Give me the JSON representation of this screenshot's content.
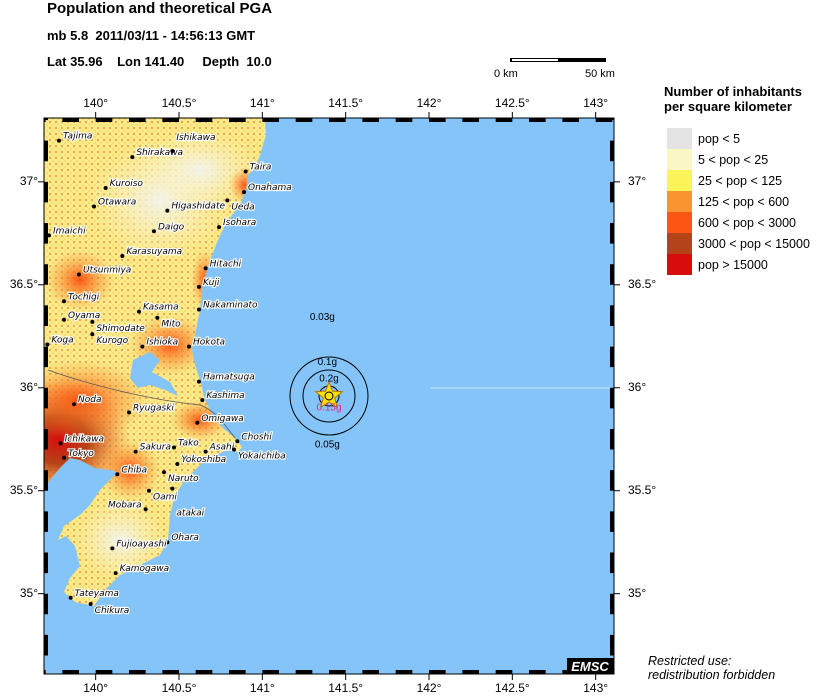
{
  "header": {
    "title": "Population and theoretical PGA",
    "event_line": "mb 5.8  2011/03/11 - 14:56:13 GMT",
    "location_line": "Lat 35.96    Lon 141.40     Depth  10.0"
  },
  "scale_bar": {
    "start_label": "0 km",
    "end_label": "50 km"
  },
  "map": {
    "extent": {
      "lon": [
        139.69,
        143.11
      ],
      "lat": [
        34.61,
        37.31
      ]
    },
    "ocean_color": "#84c4f8",
    "lon_ticks": [
      "140°",
      "140.5°",
      "141°",
      "141.5°",
      "142°",
      "142.5°",
      "143°"
    ],
    "lon_tick_values": [
      140,
      140.5,
      141,
      141.5,
      142,
      142.5,
      143
    ],
    "lat_ticks": [
      "37°",
      "36.5°",
      "36°",
      "35.5°",
      "35°"
    ],
    "lat_tick_values": [
      37,
      36.5,
      36,
      35.5,
      35
    ],
    "epicenter": {
      "lon": 141.4,
      "lat": 35.96,
      "icon": "star-icon"
    },
    "pga_labels": [
      {
        "text": "0.03g",
        "lon": 141.36,
        "lat": 36.33
      },
      {
        "text": "0.1g",
        "lon": 141.39,
        "lat": 36.11
      },
      {
        "text": "0.2g",
        "lon": 141.4,
        "lat": 36.03
      },
      {
        "text": "0.15g",
        "lon": 141.4,
        "lat": 35.89
      },
      {
        "text": "0.05g",
        "lon": 141.39,
        "lat": 35.71
      }
    ],
    "cities": [
      {
        "name": "Tajima",
        "lon": 139.78,
        "lat": 37.2
      },
      {
        "name": "Shirakawa",
        "lon": 140.22,
        "lat": 37.12
      },
      {
        "name": "Ishikawa",
        "lon": 140.46,
        "lat": 37.15
      },
      {
        "name": "Taira",
        "lon": 140.9,
        "lat": 37.05
      },
      {
        "name": "Onahama",
        "lon": 140.89,
        "lat": 36.95
      },
      {
        "name": "Ueda",
        "lon": 140.79,
        "lat": 36.91
      },
      {
        "name": "Kuroiso",
        "lon": 140.06,
        "lat": 36.97
      },
      {
        "name": "Otawara",
        "lon": 139.99,
        "lat": 36.88
      },
      {
        "name": "Higashidate",
        "lon": 140.43,
        "lat": 36.86
      },
      {
        "name": "Isohara",
        "lon": 140.74,
        "lat": 36.78
      },
      {
        "name": "Daigo",
        "lon": 140.35,
        "lat": 36.76
      },
      {
        "name": "Imaichi",
        "lon": 139.72,
        "lat": 36.74
      },
      {
        "name": "Karasuyama",
        "lon": 140.16,
        "lat": 36.64
      },
      {
        "name": "Hitachi",
        "lon": 140.66,
        "lat": 36.58
      },
      {
        "name": "Utsunmiya",
        "lon": 139.9,
        "lat": 36.55
      },
      {
        "name": "Kuji",
        "lon": 140.62,
        "lat": 36.49
      },
      {
        "name": "Tochigi",
        "lon": 139.81,
        "lat": 36.42
      },
      {
        "name": "Kasama",
        "lon": 140.26,
        "lat": 36.37
      },
      {
        "name": "Nakaminato",
        "lon": 140.62,
        "lat": 36.38
      },
      {
        "name": "Mito",
        "lon": 140.37,
        "lat": 36.34
      },
      {
        "name": "Oyama",
        "lon": 139.81,
        "lat": 36.33
      },
      {
        "name": "Shimodate",
        "lon": 139.98,
        "lat": 36.32
      },
      {
        "name": "Kurogo",
        "lon": 139.98,
        "lat": 36.26
      },
      {
        "name": "Koga",
        "lon": 139.71,
        "lat": 36.21
      },
      {
        "name": "Ishioka",
        "lon": 140.28,
        "lat": 36.2
      },
      {
        "name": "Hokota",
        "lon": 140.56,
        "lat": 36.2
      },
      {
        "name": "Hamatsuga",
        "lon": 140.62,
        "lat": 36.03
      },
      {
        "name": "Kashima",
        "lon": 140.64,
        "lat": 35.94
      },
      {
        "name": "Noda",
        "lon": 139.87,
        "lat": 35.92
      },
      {
        "name": "Ryugaski",
        "lon": 140.2,
        "lat": 35.88
      },
      {
        "name": "Omigawa",
        "lon": 140.61,
        "lat": 35.83
      },
      {
        "name": "Ichikawa",
        "lon": 139.79,
        "lat": 35.73
      },
      {
        "name": "Sakura",
        "lon": 140.24,
        "lat": 35.69
      },
      {
        "name": "Tako",
        "lon": 140.47,
        "lat": 35.71
      },
      {
        "name": "Asahi",
        "lon": 140.66,
        "lat": 35.69
      },
      {
        "name": "Choshi",
        "lon": 140.85,
        "lat": 35.74
      },
      {
        "name": "Yokaichiba",
        "lon": 140.83,
        "lat": 35.7
      },
      {
        "name": "Tokyo",
        "lon": 139.81,
        "lat": 35.66
      },
      {
        "name": "Yokoshiba",
        "lon": 140.49,
        "lat": 35.63
      },
      {
        "name": "Chiba",
        "lon": 140.13,
        "lat": 35.58
      },
      {
        "name": "Naruto",
        "lon": 140.41,
        "lat": 35.59
      },
      {
        "name": "Oami",
        "lon": 140.32,
        "lat": 35.5
      },
      {
        "name": "atakai",
        "lon": 140.46,
        "lat": 35.51
      },
      {
        "name": "Mobara",
        "lon": 140.3,
        "lat": 35.41
      },
      {
        "name": "Ohara",
        "lon": 140.43,
        "lat": 35.25
      },
      {
        "name": "Fujioayashi",
        "lon": 140.1,
        "lat": 35.22
      },
      {
        "name": "Kamogawa",
        "lon": 140.12,
        "lat": 35.1
      },
      {
        "name": "Tateyama",
        "lon": 139.85,
        "lat": 34.98
      },
      {
        "name": "Chikura",
        "lon": 139.97,
        "lat": 34.95
      }
    ],
    "logo": "EMSC"
  },
  "legend": {
    "title_line1": "Number of inhabitants",
    "title_line2": "per square kilometer",
    "items": [
      {
        "label": "pop < 5",
        "color": "#e4e4e4"
      },
      {
        "label": "5 < pop < 25",
        "color": "#fbf7c4"
      },
      {
        "label": "25 < pop < 125",
        "color": "#fbf55a"
      },
      {
        "label": "125 < pop < 600",
        "color": "#f99530"
      },
      {
        "label": "600 < pop < 3000",
        "color": "#fb5614"
      },
      {
        "label": "3000 < pop < 15000",
        "color": "#b44418"
      },
      {
        "label": "pop > 15000",
        "color": "#d80c0c"
      }
    ]
  },
  "footer": {
    "line1": "Restricted use:",
    "line2": "redistribution forbidden"
  }
}
